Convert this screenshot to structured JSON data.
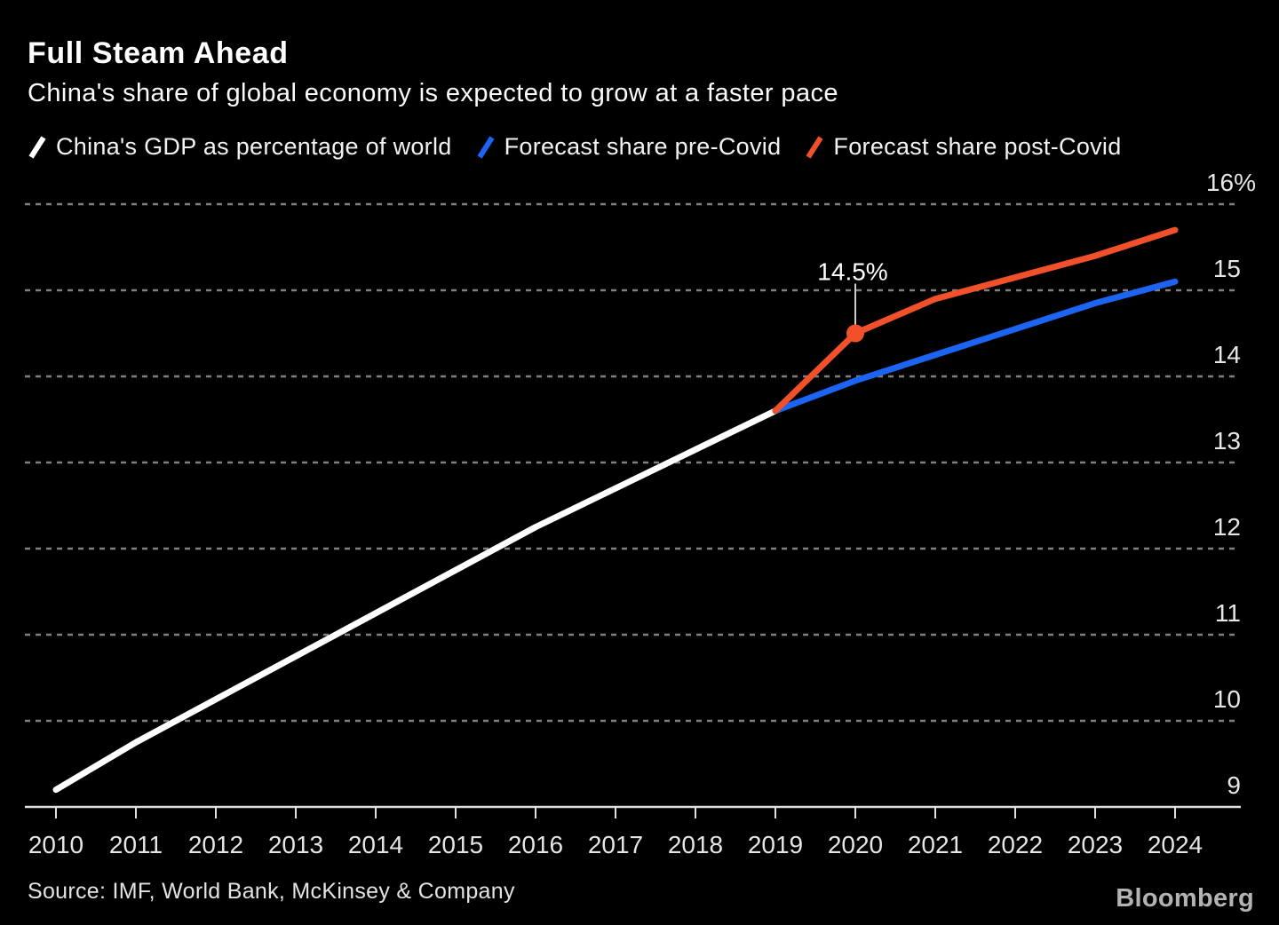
{
  "source": "Source: IMF, World Bank, McKinsey & Company",
  "brand": "Bloomberg",
  "colors": {
    "background": "#000000",
    "gridline": "#808080",
    "axis_line": "#e0e0e0",
    "tick_label": "#e6e6e6",
    "annotation": "#ffffff",
    "source_text": "#e3e3e3",
    "brand_text": "#b3b3b3"
  },
  "chart_data": {
    "type": "line",
    "title": "Full Steam Ahead",
    "subtitle": "China's share of global economy is expected to grow at a faster pace",
    "xlabel": "",
    "ylabel": "",
    "legend_position": "top",
    "grid": "dashed-horizontal",
    "xlim": [
      2010,
      2024
    ],
    "ylim": [
      9,
      16.3
    ],
    "x_ticks": [
      2010,
      2011,
      2012,
      2013,
      2014,
      2015,
      2016,
      2017,
      2018,
      2019,
      2020,
      2021,
      2022,
      2023,
      2024
    ],
    "y_ticks": [
      16,
      15,
      14,
      13,
      12,
      11,
      10,
      9
    ],
    "y_tick_labels": [
      "16%",
      "15",
      "14",
      "13",
      "12",
      "11",
      "10",
      "9"
    ],
    "series": [
      {
        "name": "China's GDP as percentage of world",
        "color": "#ffffff",
        "x": [
          2010,
          2011,
          2012,
          2013,
          2014,
          2015,
          2016,
          2017,
          2018,
          2019
        ],
        "values": [
          9.2,
          9.75,
          10.25,
          10.75,
          11.25,
          11.75,
          12.25,
          12.7,
          13.15,
          13.6
        ]
      },
      {
        "name": "Forecast share pre-Covid",
        "color": "#1c64f2",
        "x": [
          2019,
          2020,
          2021,
          2022,
          2023,
          2024
        ],
        "values": [
          13.6,
          13.95,
          14.25,
          14.55,
          14.85,
          15.1
        ]
      },
      {
        "name": "Forecast share post-Covid",
        "color": "#f0512a",
        "x": [
          2019,
          2020,
          2021,
          2022,
          2023,
          2024
        ],
        "values": [
          13.6,
          14.5,
          14.9,
          15.15,
          15.4,
          15.7
        ]
      }
    ],
    "annotation": {
      "label": "14.5%",
      "x": 2020,
      "value": 14.5,
      "series": "Forecast share post-Covid"
    }
  }
}
